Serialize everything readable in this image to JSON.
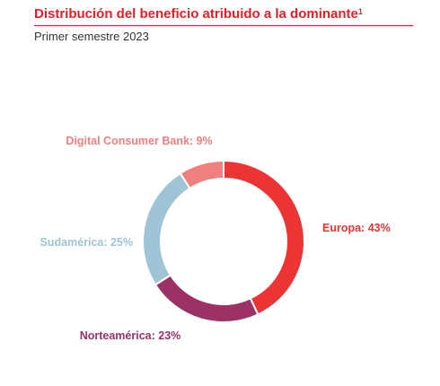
{
  "header": {
    "title": "Distribución del beneficio atribuido a la dominante",
    "footnote": "1",
    "subtitle": "Primer semestre 2023"
  },
  "colors": {
    "accent": "#ec1c24",
    "europa": "#ec3434",
    "norteamerica": "#9b3165",
    "sudamerica": "#9ec4d5",
    "dcb": "#f07f7f"
  },
  "chart_data": {
    "type": "pie",
    "variant": "donut",
    "slices": [
      {
        "name": "Europa",
        "value": 43,
        "label": "Europa: 43%",
        "color": "#ec3434"
      },
      {
        "name": "Norteamérica",
        "value": 23,
        "label": "Norteamérica: 23%",
        "color": "#9b3165"
      },
      {
        "name": "Sudamérica",
        "value": 25,
        "label": "Sudamérica: 25%",
        "color": "#9ec4d5"
      },
      {
        "name": "Digital Consumer Bank",
        "value": 9,
        "label": "Digital Consumer Bank: 9%",
        "color": "#f07f7f"
      }
    ]
  }
}
